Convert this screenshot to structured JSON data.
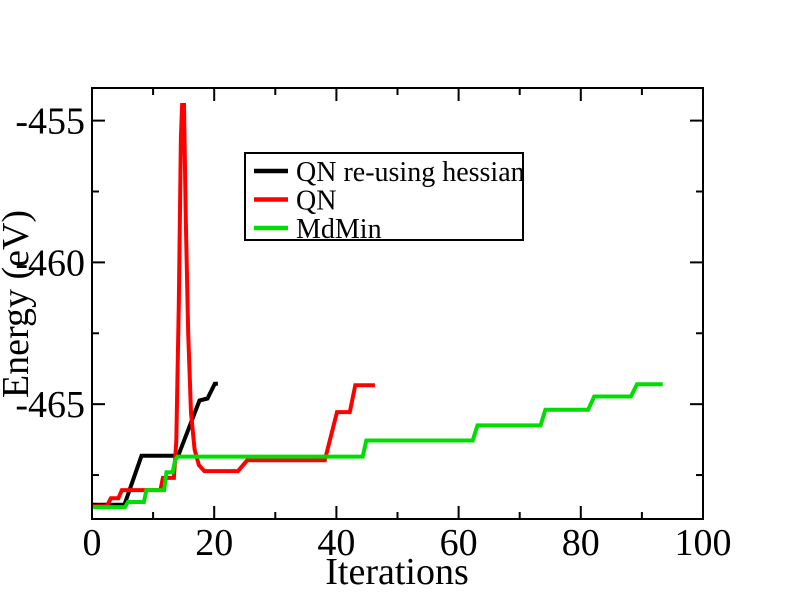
{
  "figure": {
    "background_color": "#ffffff",
    "frame_color": "#000000"
  },
  "chart_data": {
    "type": "line",
    "title": "",
    "xlabel": "Iterations",
    "ylabel": "Energy (eV)",
    "xlim": [
      0,
      100
    ],
    "ylim": [
      -469.05,
      -453.85
    ],
    "grid": false,
    "legend_position": "upper-left-inside",
    "x_ticks": {
      "major": [
        0,
        20,
        40,
        60,
        80,
        100
      ],
      "minor": [
        10,
        30,
        50,
        70,
        90
      ],
      "labels": [
        "0",
        "20",
        "40",
        "60",
        "80",
        "100"
      ]
    },
    "y_ticks": {
      "major": [
        -455,
        -460,
        -465
      ],
      "minor": [
        -457.5,
        -462.5,
        -467.5
      ],
      "labels": [
        "-455",
        "-460",
        "-465"
      ]
    },
    "series": [
      {
        "name": "QN re-using hessian",
        "color": "#000000",
        "points": [
          [
            0,
            -468.55
          ],
          [
            5.3,
            -468.55
          ],
          [
            8.1,
            -466.82
          ],
          [
            14.1,
            -466.82
          ],
          [
            17.6,
            -464.87
          ],
          [
            18.9,
            -464.8
          ],
          [
            20.1,
            -464.28
          ],
          [
            20.6,
            -464.28
          ]
        ]
      },
      {
        "name": "QN",
        "color": "#ff0000",
        "points": [
          [
            0,
            -468.6
          ],
          [
            2.4,
            -468.6
          ],
          [
            3.1,
            -468.32
          ],
          [
            4.3,
            -468.32
          ],
          [
            4.9,
            -468.03
          ],
          [
            11.2,
            -468.03
          ],
          [
            11.6,
            -467.6
          ],
          [
            13.4,
            -467.6
          ],
          [
            13.8,
            -466.3
          ],
          [
            14.2,
            -461.5
          ],
          [
            14.55,
            -455.6
          ],
          [
            14.75,
            -454.45
          ],
          [
            15.05,
            -454.45
          ],
          [
            15.35,
            -458.5
          ],
          [
            15.75,
            -462.5
          ],
          [
            16.2,
            -465.3
          ],
          [
            16.8,
            -466.6
          ],
          [
            17.5,
            -467.15
          ],
          [
            18.4,
            -467.36
          ],
          [
            23.9,
            -467.36
          ],
          [
            25.4,
            -466.98
          ],
          [
            38.1,
            -466.98
          ],
          [
            40.1,
            -465.28
          ],
          [
            42.2,
            -465.28
          ],
          [
            43.1,
            -464.33
          ],
          [
            46.3,
            -464.33
          ]
        ]
      },
      {
        "name": "MdMin",
        "color": "#00dd00",
        "points": [
          [
            0,
            -468.63
          ],
          [
            5.4,
            -468.63
          ],
          [
            5.9,
            -468.45
          ],
          [
            8.5,
            -468.45
          ],
          [
            8.9,
            -468.03
          ],
          [
            11.8,
            -468.03
          ],
          [
            12.2,
            -467.4
          ],
          [
            13.2,
            -467.4
          ],
          [
            13.6,
            -466.98
          ],
          [
            14,
            -466.85
          ],
          [
            44.3,
            -466.85
          ],
          [
            44.9,
            -466.28
          ],
          [
            62.3,
            -466.28
          ],
          [
            63.1,
            -465.75
          ],
          [
            73.4,
            -465.75
          ],
          [
            74.2,
            -465.2
          ],
          [
            81.2,
            -465.2
          ],
          [
            82.2,
            -464.73
          ],
          [
            88.2,
            -464.73
          ],
          [
            89.2,
            -464.3
          ],
          [
            93.4,
            -464.3
          ]
        ]
      }
    ]
  }
}
